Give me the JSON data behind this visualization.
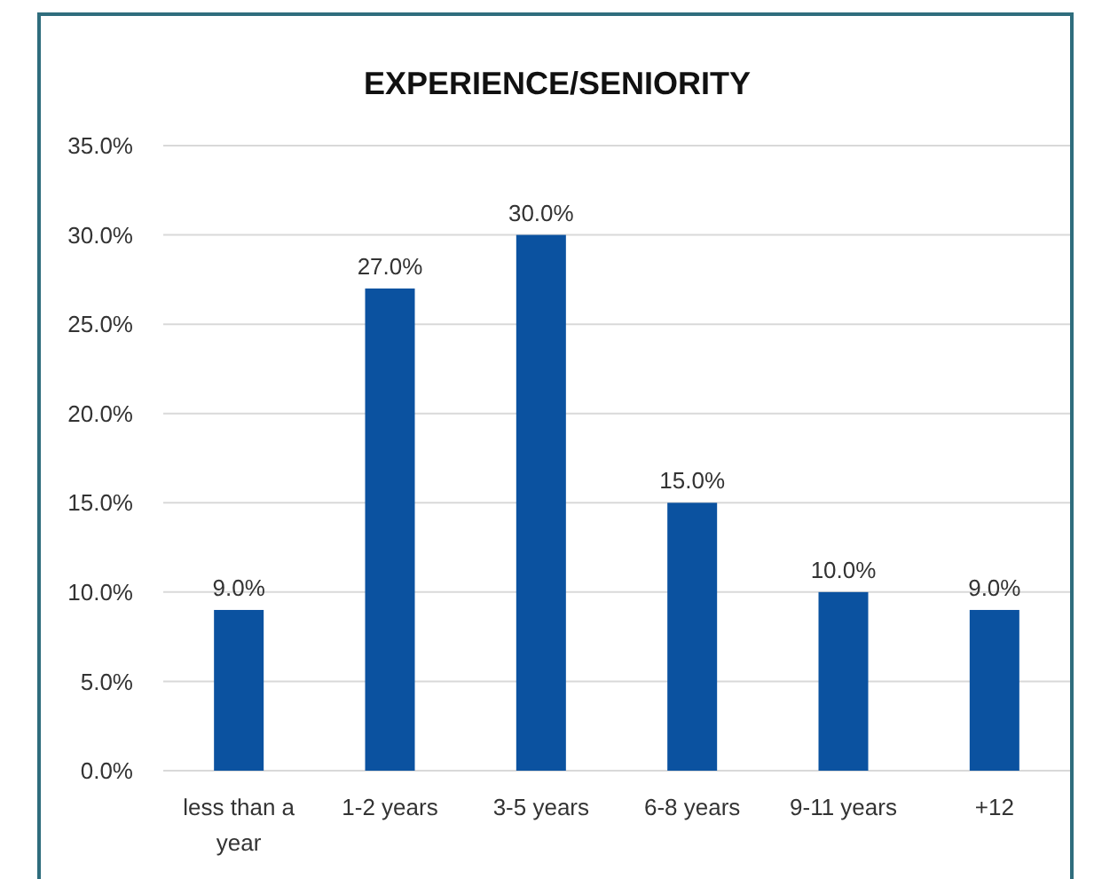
{
  "chart_data": {
    "type": "bar",
    "title": "EXPERIENCE/SENIORITY",
    "categories": [
      "less than a year",
      "1-2 years",
      "3-5 years",
      "6-8 years",
      "9-11 years",
      "+12"
    ],
    "values": [
      9,
      27,
      30,
      15,
      10,
      9
    ],
    "value_labels": [
      "9.0%",
      "27.0%",
      "30.0%",
      "15.0%",
      "10.0%",
      "9.0%"
    ],
    "color": "#0b52a0",
    "ylim": [
      0,
      35
    ],
    "yticks": [
      {
        "value": 0,
        "label": "0.0%"
      },
      {
        "value": 5,
        "label": "5.0%"
      },
      {
        "value": 10,
        "label": "10.0%"
      },
      {
        "value": 15,
        "label": "15.0%"
      },
      {
        "value": 20,
        "label": "20.0%"
      },
      {
        "value": 25,
        "label": "25.0%"
      },
      {
        "value": 30,
        "label": "30.0%"
      },
      {
        "value": 35,
        "label": "35.0%"
      }
    ],
    "grid": "y"
  }
}
